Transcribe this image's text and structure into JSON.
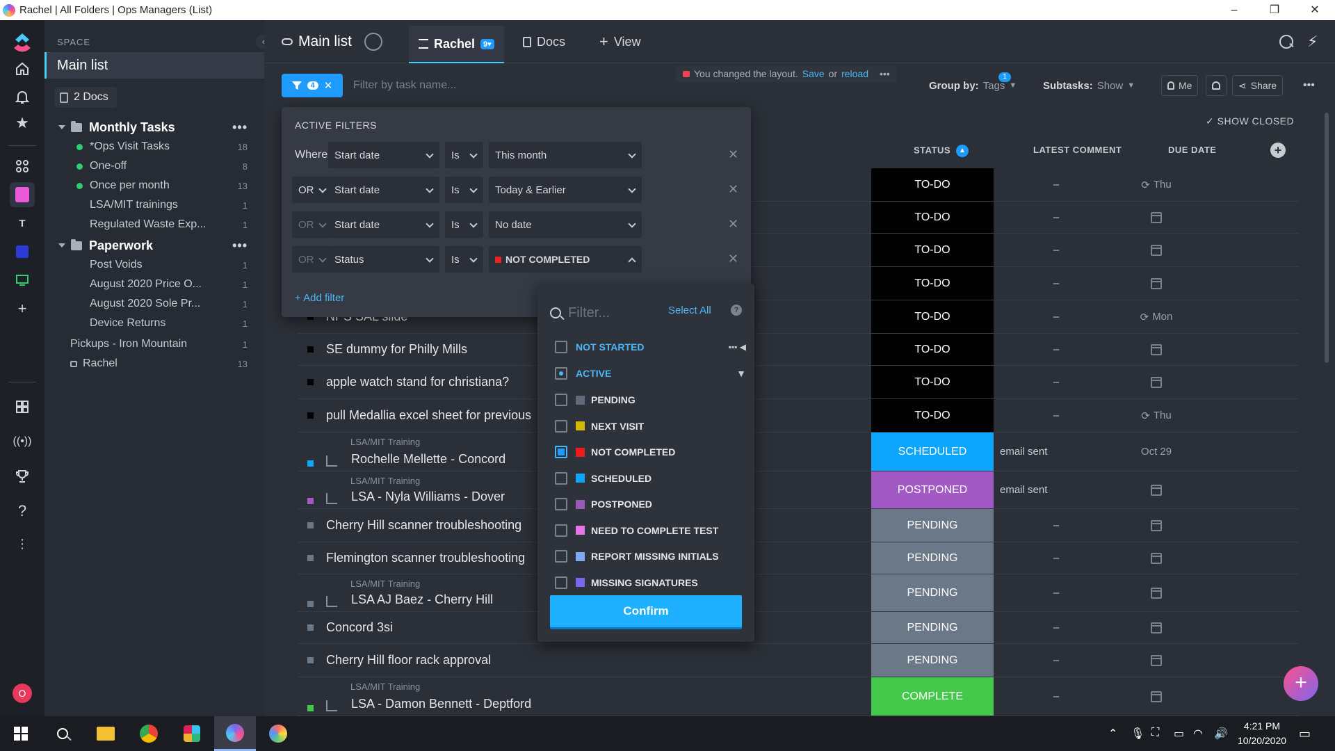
{
  "window": {
    "title": "Rachel | All Folders | Ops Managers (List)",
    "minimize": "–",
    "maximize": "❐",
    "close": "✕"
  },
  "rail": {
    "workspace_initial": "T",
    "user_initial": "O"
  },
  "sidebar": {
    "space_label": "SPACE",
    "collapse": "‹",
    "main_list": "Main list",
    "docs": "2 Docs",
    "folders": [
      {
        "name": "Monthly Tasks",
        "more": "•••",
        "items": [
          {
            "label": "*Ops Visit Tasks",
            "count": "18",
            "dot": true
          },
          {
            "label": "One-off",
            "count": "8",
            "dot": true
          },
          {
            "label": "Once per month",
            "count": "13",
            "dot": true
          },
          {
            "label": "LSA/MIT trainings",
            "count": "1",
            "dot": false
          },
          {
            "label": "Regulated Waste Exp...",
            "count": "1",
            "dot": false
          }
        ]
      },
      {
        "name": "Paperwork",
        "more": "•••",
        "items": [
          {
            "label": "Post Voids",
            "count": "1"
          },
          {
            "label": "August 2020 Price O...",
            "count": "1"
          },
          {
            "label": "August 2020 Sole Pr...",
            "count": "1"
          },
          {
            "label": "Device Returns",
            "count": "1"
          }
        ]
      }
    ],
    "lists": [
      {
        "label": "Pickups - Iron Mountain",
        "count": "1"
      },
      {
        "label": "Rachel",
        "count": "13"
      }
    ]
  },
  "header": {
    "title": "Main list",
    "tabs": [
      {
        "label": "Rachel",
        "badge": "9▾"
      },
      {
        "label": "Docs"
      },
      {
        "label": "View",
        "prefix": "+"
      }
    ]
  },
  "toolbar": {
    "filter_count": "4",
    "filter_clear": "✕",
    "search_placeholder": "Filter by task name...",
    "notice": {
      "text": "You changed the layout.",
      "save": "Save",
      "or": "or",
      "reload": "reload",
      "more": "•••"
    },
    "group_by_label": "Group by:",
    "group_by_value": "Tags",
    "subtasks_label": "Subtasks:",
    "subtasks_value": "Show",
    "me": "Me",
    "assignee_badge": "1",
    "share": "Share",
    "more": "•••"
  },
  "filters": {
    "title": "ACTIVE FILTERS",
    "where": "Where",
    "rows": [
      {
        "conj": "",
        "field": "Start date",
        "op": "Is",
        "value": "This month"
      },
      {
        "conj": "OR",
        "field": "Start date",
        "op": "Is",
        "value": "Today & Earlier"
      },
      {
        "conj": "OR",
        "field": "Start date",
        "op": "Is",
        "value": "No date"
      },
      {
        "conj": "OR",
        "field": "Status",
        "op": "Is",
        "value": "NOT COMPLETED"
      }
    ],
    "remove": "✕",
    "add_filter": "+ Add filter"
  },
  "status_dropdown": {
    "search_placeholder": "Filter...",
    "select_all": "Select All",
    "help": "?",
    "groups": [
      {
        "label": "NOT STARTED",
        "type": "group"
      },
      {
        "label": "ACTIVE",
        "type": "group"
      }
    ],
    "options": [
      {
        "label": "PENDING",
        "color": "#5f6b7a",
        "checked": false
      },
      {
        "label": "NEXT VISIT",
        "color": "#d4b800",
        "checked": false
      },
      {
        "label": "NOT COMPLETED",
        "color": "#ee1b1b",
        "checked": true
      },
      {
        "label": "SCHEDULED",
        "color": "#0ea5ff",
        "checked": false
      },
      {
        "label": "POSTPONED",
        "color": "#9b59b6",
        "checked": false
      },
      {
        "label": "NEED TO COMPLETE TEST",
        "color": "#e774e7",
        "checked": false
      },
      {
        "label": "REPORT MISSING INITIALS",
        "color": "#7fa8f5",
        "checked": false
      },
      {
        "label": "MISSING SIGNATURES",
        "color": "#7b68ee",
        "checked": false
      }
    ],
    "confirm": "Confirm"
  },
  "table": {
    "show_closed": "✓ SHOW CLOSED",
    "columns": {
      "status": "STATUS",
      "comment": "LATEST COMMENT",
      "due": "DUE DATE"
    },
    "rows": [
      {
        "task": "",
        "parent": "",
        "status": "TO-DO",
        "comment": "–",
        "due": "Thu",
        "due_type": "recur"
      },
      {
        "task": "",
        "parent": "",
        "status": "TO-DO",
        "comment": "–",
        "due": "",
        "due_type": "cal"
      },
      {
        "task": "",
        "parent": "",
        "status": "TO-DO",
        "comment": "–",
        "due": "",
        "due_type": "cal"
      },
      {
        "task": "",
        "parent": "",
        "status": "TO-DO",
        "comment": "–",
        "due": "",
        "due_type": "cal"
      },
      {
        "task": "NPS SAL slide",
        "parent": "",
        "status": "TO-DO",
        "comment": "–",
        "due": "Mon",
        "due_type": "recur"
      },
      {
        "task": "SE dummy for Philly Mills",
        "parent": "",
        "status": "TO-DO",
        "comment": "–",
        "due": "",
        "due_type": "cal"
      },
      {
        "task": "apple watch stand for christiana?",
        "parent": "",
        "status": "TO-DO",
        "comment": "–",
        "due": "",
        "due_type": "cal"
      },
      {
        "task": "pull Medallia excel sheet for previous",
        "parent": "",
        "status": "TO-DO",
        "comment": "–",
        "due": "Thu",
        "due_type": "recur"
      },
      {
        "task": "Rochelle Mellette - Concord",
        "parent": "LSA/MIT Training",
        "status": "SCHEDULED",
        "comment": "email sent",
        "due": "Oct 29",
        "due_type": "text"
      },
      {
        "task": "LSA - Nyla Williams - Dover",
        "parent": "LSA/MIT Training",
        "status": "POSTPONED",
        "comment": "email sent",
        "due": "",
        "due_type": "cal"
      },
      {
        "task": "Cherry Hill scanner troubleshooting",
        "parent": "",
        "status": "PENDING",
        "comment": "–",
        "due": "",
        "due_type": "cal"
      },
      {
        "task": "Flemington scanner troubleshooting",
        "parent": "",
        "status": "PENDING",
        "comment": "–",
        "due": "",
        "due_type": "cal"
      },
      {
        "task": "LSA AJ Baez - Cherry Hill",
        "parent": "LSA/MIT Training",
        "status": "PENDING",
        "comment": "–",
        "due": "",
        "due_type": "cal"
      },
      {
        "task": "Concord 3si",
        "parent": "",
        "status": "PENDING",
        "comment": "–",
        "due": "",
        "due_type": "cal"
      },
      {
        "task": "Cherry Hill floor rack approval",
        "parent": "",
        "status": "PENDING",
        "comment": "–",
        "due": "",
        "due_type": "cal"
      },
      {
        "task": "LSA - Damon Bennett - Deptford",
        "parent": "LSA/MIT Training",
        "status": "COMPLETE",
        "comment": "–",
        "due": "",
        "due_type": "cal"
      }
    ],
    "status_colors": {
      "TO-DO": "#000000",
      "SCHEDULED": "#0ea5ff",
      "POSTPONED": "#a259c4",
      "PENDING": "#6b7888",
      "COMPLETE": "#44c84a"
    }
  },
  "taskbar": {
    "time": "4:21 PM",
    "date": "10/20/2020"
  }
}
